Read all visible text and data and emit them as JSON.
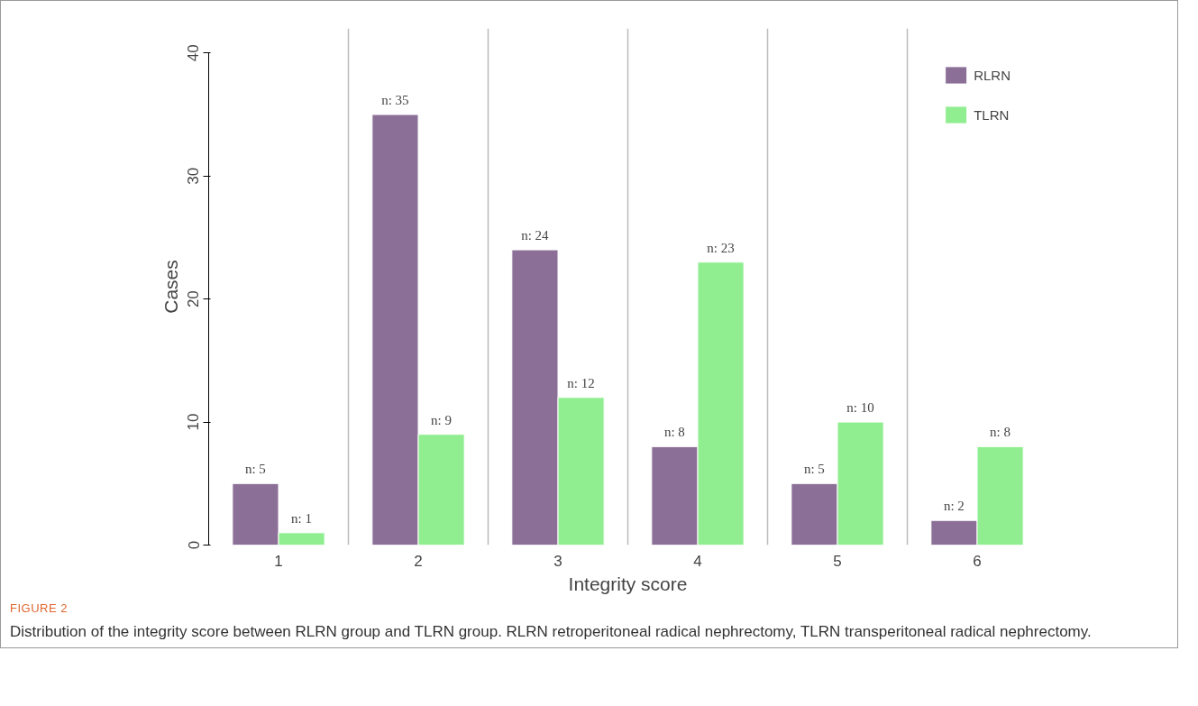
{
  "chart_data": {
    "type": "bar",
    "title": "FIGURE 2",
    "xlabel": "Integrity score",
    "ylabel": "Cases",
    "categories": [
      "1",
      "2",
      "3",
      "4",
      "5",
      "6"
    ],
    "series": [
      {
        "name": "RLRN",
        "color": "#8b6f96",
        "values": [
          5,
          35,
          24,
          8,
          5,
          2
        ],
        "value_labels": [
          "n: 5",
          "n: 35",
          "n: 24",
          "n: 8",
          "n: 5",
          "n: 2"
        ]
      },
      {
        "name": "TLRN",
        "color": "#90ee90",
        "values": [
          1,
          9,
          12,
          23,
          10,
          8
        ],
        "value_labels": [
          "n: 1",
          "n: 9",
          "n: 12",
          "n: 23",
          "n: 10",
          "n: 8"
        ]
      }
    ],
    "ylim": [
      0,
      42
    ],
    "yticks": [
      0,
      10,
      20,
      30,
      40
    ],
    "grid": "x",
    "legend": "top right",
    "annotations": [
      "Distribution of the integrity score between RLRN group and TLRN group. RLRN retroperitoneal radical nephrectomy, TLRN transperitoneal radical nephrectomy."
    ]
  }
}
